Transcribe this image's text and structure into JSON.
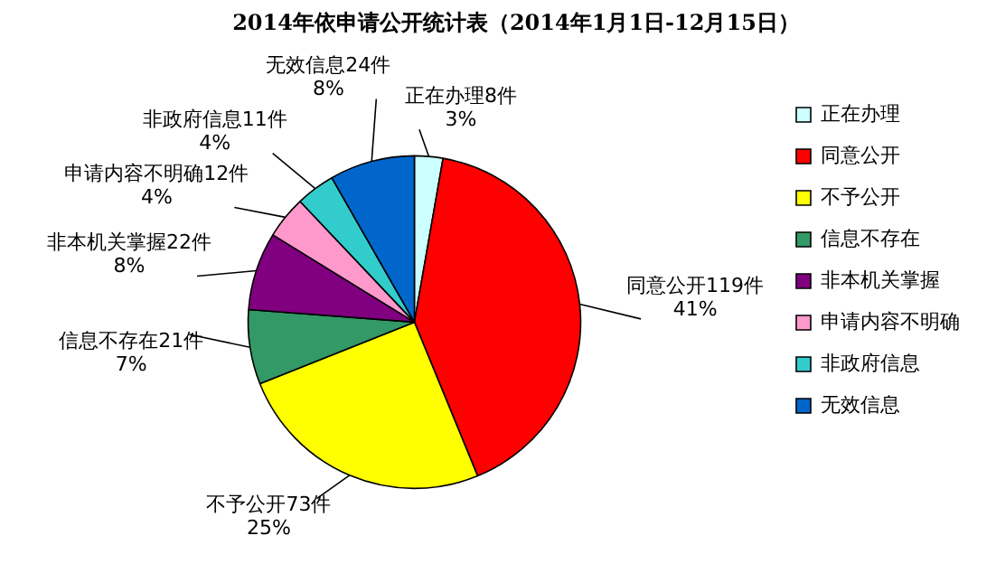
{
  "chart_data": {
    "type": "pie",
    "title": "2014年依申请公开统计表（2014年1月1日-12月15日）",
    "categories": [
      "正在办理",
      "同意公开",
      "不予公开",
      "信息不存在",
      "非本机关掌握",
      "申请内容不明确",
      "非政府信息",
      "无效信息"
    ],
    "values": [
      8,
      119,
      73,
      21,
      22,
      12,
      11,
      24
    ],
    "colors": [
      "#ccffff",
      "#ff0000",
      "#ffff00",
      "#339966",
      "#800080",
      "#ff99cc",
      "#33cccc",
      "#0066cc"
    ],
    "value_labels": [
      "正在办理8件\n3%",
      "同意公开119件\n41%",
      "不予公开73件\n25%",
      "信息不存在21件\n7%",
      "非本机关掌握22件\n8%",
      "申请内容不明确12件\n4%",
      "非政府信息11件\n4%",
      "无效信息24件\n8%"
    ],
    "legend": "right"
  }
}
